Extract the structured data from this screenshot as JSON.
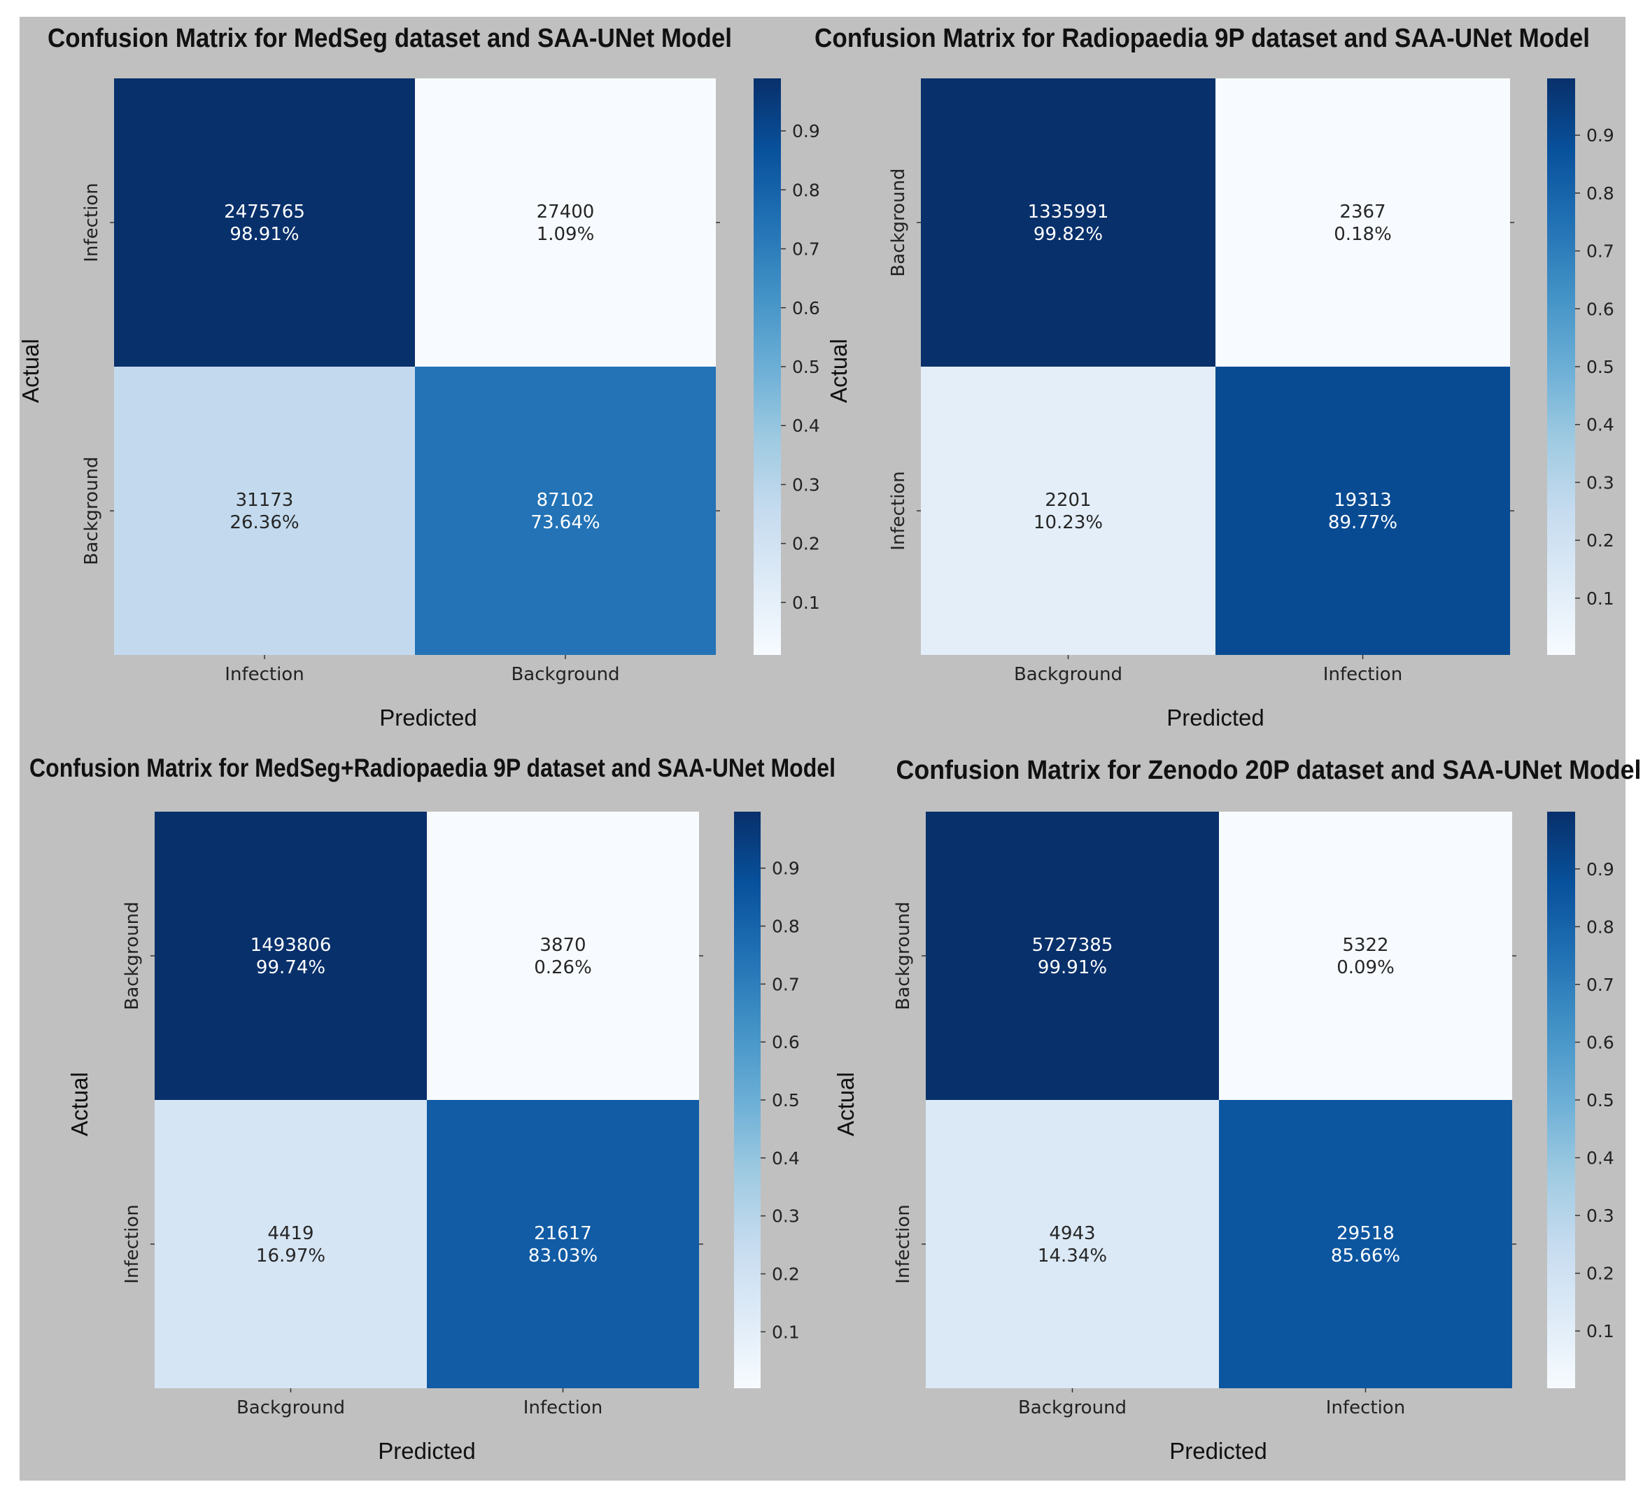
{
  "chart_data": [
    {
      "type": "heatmap",
      "title": "Confusion Matrix for MedSeg dataset and SAA-UNet Model",
      "xlabel": "Predicted",
      "ylabel": "Actual",
      "x_categories": [
        "Infection",
        "Background"
      ],
      "y_categories": [
        "Infection",
        "Background"
      ],
      "counts": [
        [
          2475765,
          27400
        ],
        [
          31173,
          87102
        ]
      ],
      "percent_labels": [
        [
          "98.91%",
          "1.09%"
        ],
        [
          "26.36%",
          "73.64%"
        ]
      ],
      "normalized": [
        [
          0.9891,
          0.0109
        ],
        [
          0.2636,
          0.7364
        ]
      ],
      "colorbar": {
        "ticks": [
          "0.1",
          "0.2",
          "0.3",
          "0.4",
          "0.5",
          "0.6",
          "0.7",
          "0.8",
          "0.9"
        ],
        "range": [
          0.0109,
          0.9891
        ]
      },
      "colormap": "Blues"
    },
    {
      "type": "heatmap",
      "title": "Confusion Matrix for Radiopaedia 9P dataset and SAA-UNet Model",
      "xlabel": "Predicted",
      "ylabel": "Actual",
      "x_categories": [
        "Background",
        "Infection"
      ],
      "y_categories": [
        "Background",
        "Infection"
      ],
      "counts": [
        [
          1335991,
          2367
        ],
        [
          2201,
          19313
        ]
      ],
      "percent_labels": [
        [
          "99.82%",
          "0.18%"
        ],
        [
          "10.23%",
          "89.77%"
        ]
      ],
      "normalized": [
        [
          0.9982,
          0.0018
        ],
        [
          0.1023,
          0.8977
        ]
      ],
      "colorbar": {
        "ticks": [
          "0.1",
          "0.2",
          "0.3",
          "0.4",
          "0.5",
          "0.6",
          "0.7",
          "0.8",
          "0.9"
        ],
        "range": [
          0.0018,
          0.9982
        ]
      },
      "colormap": "Blues"
    },
    {
      "type": "heatmap",
      "title": "Confusion Matrix for MedSeg+Radiopaedia 9P dataset and SAA-UNet Model",
      "xlabel": "Predicted",
      "ylabel": "Actual",
      "x_categories": [
        "Background",
        "Infection"
      ],
      "y_categories": [
        "Background",
        "Infection"
      ],
      "counts": [
        [
          1493806,
          3870
        ],
        [
          4419,
          21617
        ]
      ],
      "percent_labels": [
        [
          "99.74%",
          "0.26%"
        ],
        [
          "16.97%",
          "83.03%"
        ]
      ],
      "normalized": [
        [
          0.9974,
          0.0026
        ],
        [
          0.1697,
          0.8303
        ]
      ],
      "colorbar": {
        "ticks": [
          "0.1",
          "0.2",
          "0.3",
          "0.4",
          "0.5",
          "0.6",
          "0.7",
          "0.8",
          "0.9"
        ],
        "range": [
          0.0026,
          0.9974
        ]
      },
      "colormap": "Blues"
    },
    {
      "type": "heatmap",
      "title": "Confusion Matrix for Zenodo 20P dataset and SAA-UNet Model",
      "xlabel": "Predicted",
      "ylabel": "Actual",
      "x_categories": [
        "Background",
        "Infection"
      ],
      "y_categories": [
        "Background",
        "Infection"
      ],
      "counts": [
        [
          5727385,
          5322
        ],
        [
          4943,
          29518
        ]
      ],
      "percent_labels": [
        [
          "99.91%",
          "0.09%"
        ],
        [
          "14.34%",
          "85.66%"
        ]
      ],
      "normalized": [
        [
          0.9991,
          0.0009
        ],
        [
          0.1434,
          0.8566
        ]
      ],
      "colorbar": {
        "ticks": [
          "0.1",
          "0.2",
          "0.3",
          "0.4",
          "0.5",
          "0.6",
          "0.7",
          "0.8",
          "0.9"
        ],
        "range": [
          0.0009,
          0.9991
        ]
      },
      "colormap": "Blues"
    }
  ]
}
